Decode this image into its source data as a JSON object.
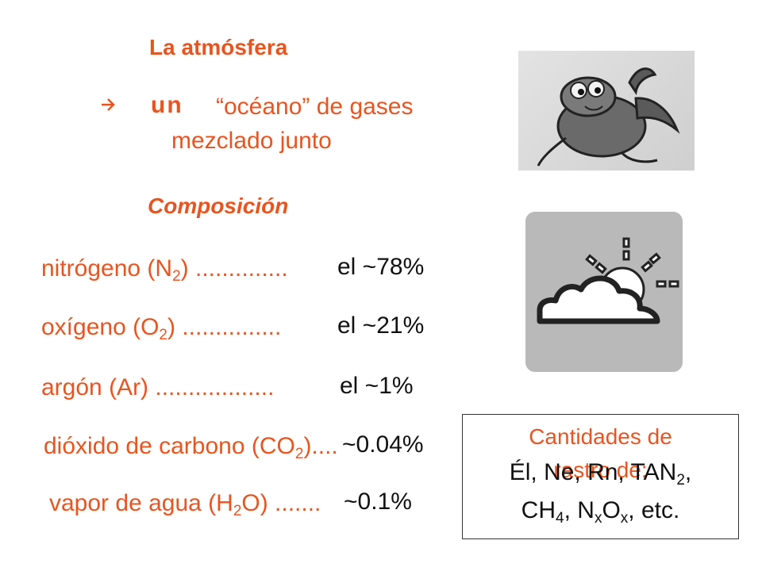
{
  "title": "La atmósfera",
  "subtitle": {
    "arrow": "",
    "bullet": "un",
    "line1": "“océano” de gases",
    "line2": "mezclado junto"
  },
  "composition_heading": "Composición",
  "components": [
    {
      "name": "nitrógeno (N",
      "sub": "2",
      "after": ") ..............",
      "value": "el ~78%"
    },
    {
      "name": "oxígeno (O",
      "sub": "2",
      "after": ") ...............",
      "value": "el ~21%"
    },
    {
      "name": "argón (Ar) ..................",
      "sub": "",
      "after": "",
      "value": "el ~1%"
    },
    {
      "name": "dióxido de carbono (CO",
      "sub": "2",
      "after": ")....",
      "value": "~0.04%"
    },
    {
      "name": "vapor de agua (H",
      "sub": "2",
      "after": "O) .......",
      "value": "~0.1%"
    }
  ],
  "trace": {
    "title": "Cantidades de",
    "overlap": "rastro de:",
    "line1_a": "Él, Ne, Rn, TAN",
    "line1_sub": "2",
    "line1_b": ",",
    "line2_a": "CH",
    "line2_sub1": "4",
    "line2_b": ", N",
    "line2_sub2": "x",
    "line2_c": "O",
    "line2_sub3": "x",
    "line2_d": ", etc."
  },
  "colors": {
    "accent": "#e9541e",
    "text": "#111111",
    "icon_bg": "#b9b9b9"
  },
  "icons": [
    "cartoon-lobster-image",
    "cloud-sun-icon"
  ]
}
